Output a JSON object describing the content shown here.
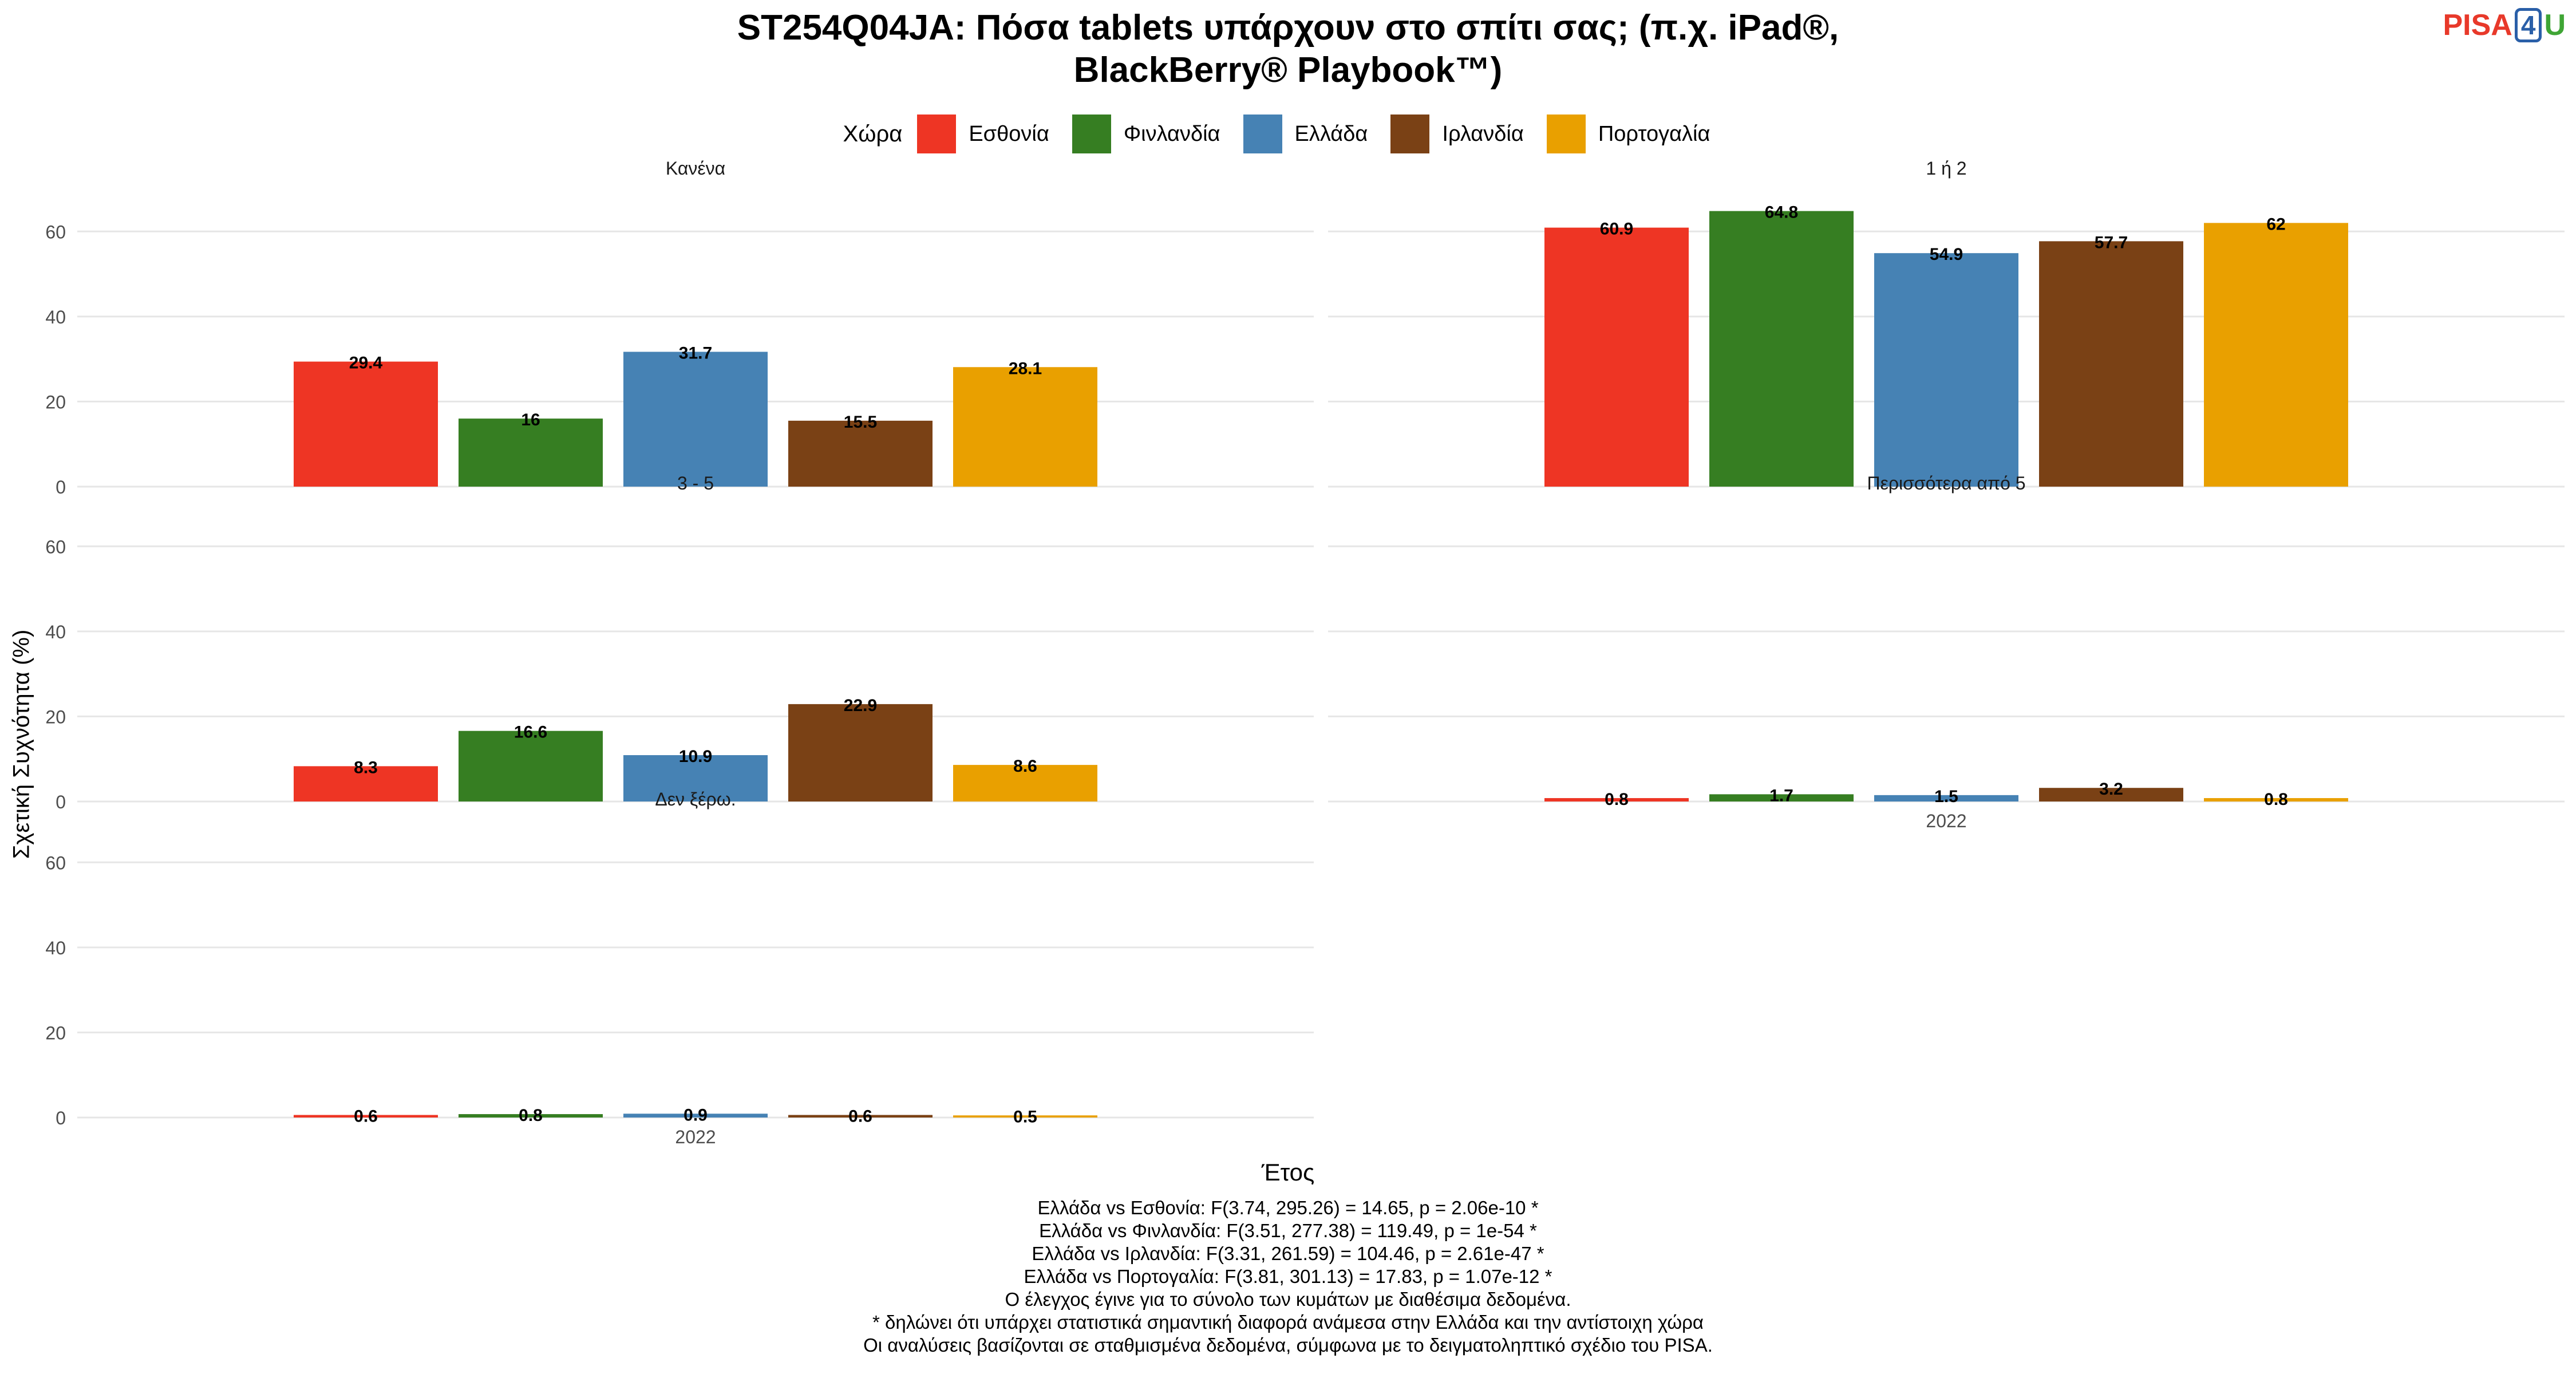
{
  "chart_data": {
    "type": "bar",
    "title": "ST254Q04JA: Πόσα tablets υπάρχουν στο σπίτι σας; (π.χ. iPad®, BlackBerry® Playbook™)",
    "xlabel": "Έτος",
    "ylabel": "Σχετική Συχνότητα (%)",
    "ylim": [
      0,
      70
    ],
    "yticks": [
      0,
      20,
      40,
      60
    ],
    "grid": true,
    "legend_title": "Χώρα",
    "legend_position": "top",
    "categories": [
      "2022"
    ],
    "series": [
      {
        "name": "Εσθονία",
        "color": "#EE3524"
      },
      {
        "name": "Φινλανδία",
        "color": "#367E22"
      },
      {
        "name": "Ελλάδα",
        "color": "#4682B4"
      },
      {
        "name": "Ιρλανδία",
        "color": "#7A4115"
      },
      {
        "name": "Πορτογαλία",
        "color": "#E9A000"
      }
    ],
    "facets": [
      {
        "label": "Κανένα",
        "values": [
          29.4,
          16,
          31.7,
          15.5,
          28.1
        ],
        "labels": [
          "29.4",
          "16",
          "31.7",
          "15.5",
          "28.1"
        ]
      },
      {
        "label": "1 ή 2",
        "values": [
          60.9,
          64.8,
          54.9,
          57.7,
          62
        ],
        "labels": [
          "60.9",
          "64.8",
          "54.9",
          "57.7",
          "62"
        ]
      },
      {
        "label": "3 - 5",
        "values": [
          8.3,
          16.6,
          10.9,
          22.9,
          8.6
        ],
        "labels": [
          "8.3",
          "16.6",
          "10.9",
          "22.9",
          "8.6"
        ]
      },
      {
        "label": "Περισσότερα από 5",
        "values": [
          0.8,
          1.7,
          1.5,
          3.2,
          0.8
        ],
        "labels": [
          "0.8",
          "1.7",
          "1.5",
          "3.2",
          "0.8"
        ]
      },
      {
        "label": "Δεν ξέρω.",
        "values": [
          0.6,
          0.8,
          0.9,
          0.6,
          0.5
        ],
        "labels": [
          "0.6",
          "0.8",
          "0.9",
          "0.6",
          "0.5"
        ]
      }
    ]
  },
  "title": {
    "line1": "ST254Q04JA: Πόσα tablets υπάρχουν στο σπίτι σας; (π.χ. iPad®,",
    "line2": "BlackBerry® Playbook™)"
  },
  "logo": {
    "pisa": "PISA",
    "four": "4",
    "u": "U"
  },
  "legend": {
    "title": "Χώρα",
    "items": [
      {
        "label": "Εσθονία",
        "color": "#EE3524"
      },
      {
        "label": "Φινλανδία",
        "color": "#367E22"
      },
      {
        "label": "Ελλάδα",
        "color": "#4682B4"
      },
      {
        "label": "Ιρλανδία",
        "color": "#7A4115"
      },
      {
        "label": "Πορτογαλία",
        "color": "#E9A000"
      }
    ]
  },
  "axis": {
    "ylabel": "Σχετική Συχνότητα (%)",
    "xlabel": "Έτος"
  },
  "notes": [
    "Ελλάδα vs Εσθονία: F(3.74, 295.26) = 14.65, p = 2.06e-10 *",
    "Ελλάδα vs Φινλανδία: F(3.51, 277.38) = 119.49, p = 1e-54 *",
    "Ελλάδα vs Ιρλανδία: F(3.31, 261.59) = 104.46, p = 2.61e-47 *",
    "Ελλάδα vs Πορτογαλία: F(3.81, 301.13) = 17.83, p = 1.07e-12 *",
    "Ο έλεγχος έγινε για το σύνολο των κυμάτων με διαθέσιμα δεδομένα.",
    "* δηλώνει ότι υπάρχει στατιστικά σημαντική διαφορά ανάμεσα στην Ελλάδα και την αντίστοιχη χώρα",
    "Οι αναλύσεις βασίζονται σε σταθμισμένα δεδομένα, σύμφωνα με το δειγματοληπτικό σχέδιο του PISA."
  ]
}
